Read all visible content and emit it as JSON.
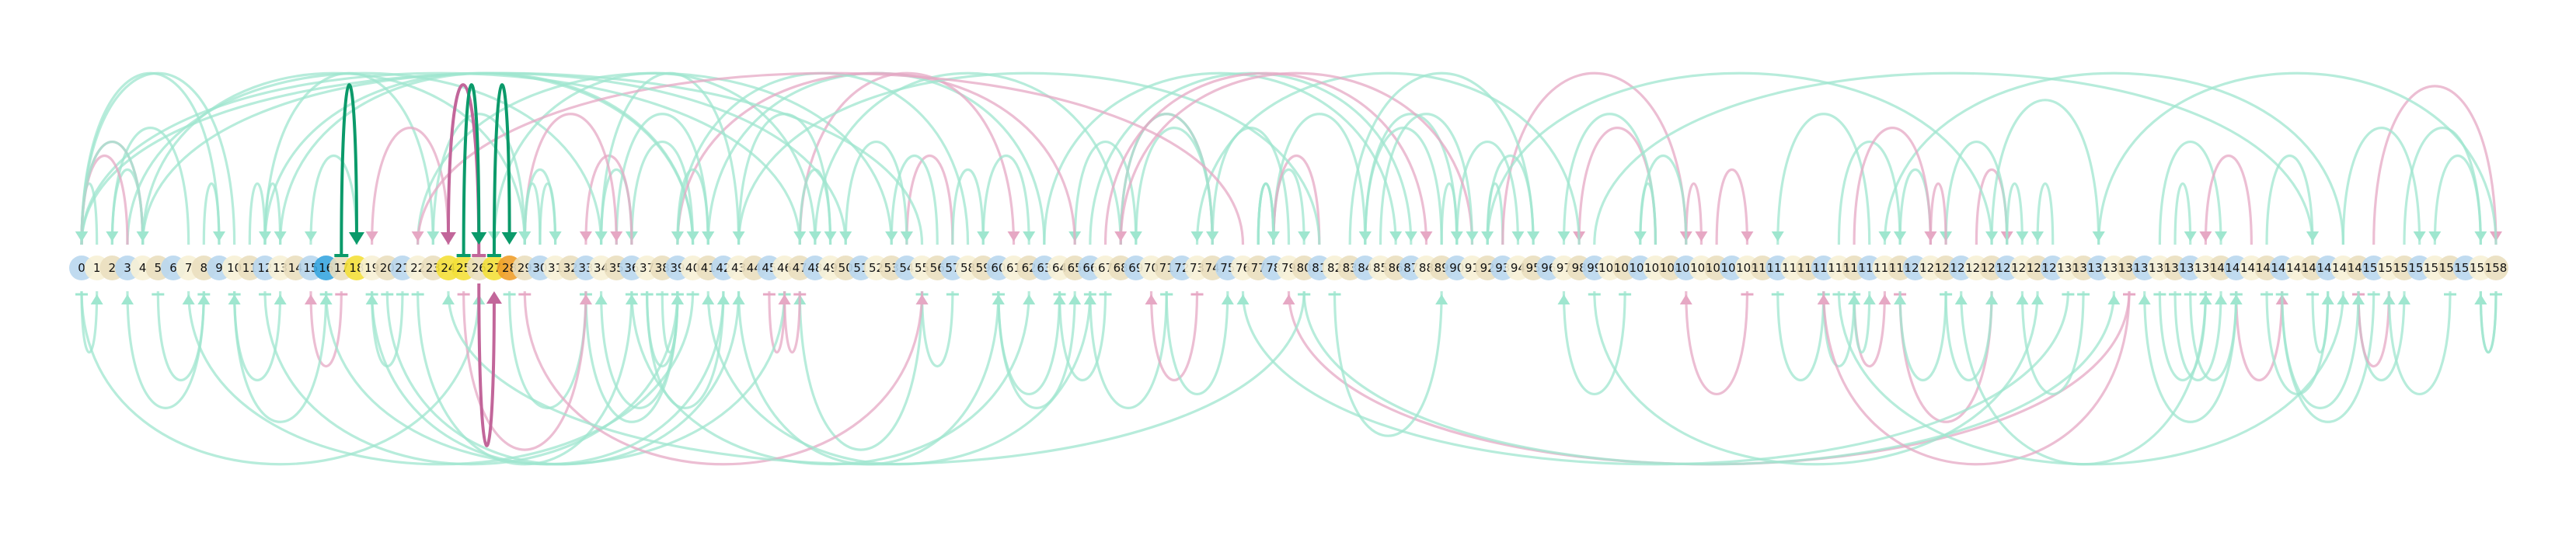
{
  "colors": {
    "background": "#ffffff",
    "arc_mint": "#9fe6cf",
    "arc_pink": "#e6a8c4",
    "arc_green_strong": "#0b9a6a",
    "arc_pink_strong": "#c2669a",
    "node_blue": "#b9d7ee",
    "node_cream": "#f7f1d6",
    "node_tan": "#eadfbf",
    "node_yellow": "#f4e03a",
    "node_strong_blue": "#39a6e0",
    "node_orange": "#ef9f2b"
  },
  "nodes": {
    "count": 159,
    "labels": [
      "0",
      "1",
      "2",
      "3",
      "4",
      "5",
      "6",
      "7",
      "8",
      "9",
      "10",
      "11",
      "12",
      "13",
      "14",
      "15",
      "16",
      "17",
      "18",
      "19",
      "20",
      "21",
      "22",
      "23",
      "24",
      "25",
      "26",
      "27",
      "28",
      "29",
      "30",
      "31",
      "32",
      "33",
      "34",
      "35",
      "36",
      "37",
      "38",
      "39",
      "40",
      "41",
      "42",
      "43",
      "44",
      "45",
      "46",
      "47",
      "48",
      "49",
      "50",
      "51",
      "52",
      "53",
      "54",
      "55",
      "56",
      "57",
      "58",
      "59",
      "60",
      "61",
      "62",
      "63",
      "64",
      "65",
      "66",
      "67",
      "68",
      "69",
      "70",
      "71",
      "72",
      "73",
      "74",
      "75",
      "76",
      "77",
      "78",
      "79",
      "80",
      "81",
      "82",
      "83",
      "84",
      "85",
      "86",
      "87",
      "88",
      "89",
      "90",
      "91",
      "92",
      "93",
      "94",
      "95",
      "96",
      "97",
      "98",
      "99",
      "100",
      "101",
      "102",
      "103",
      "104",
      "105",
      "106",
      "107",
      "108",
      "109",
      "110",
      "111",
      "112",
      "113",
      "114",
      "115",
      "116",
      "117",
      "118",
      "119",
      "120",
      "121",
      "122",
      "123",
      "124",
      "125",
      "126",
      "127",
      "128",
      "129",
      "130",
      "131",
      "132",
      "133",
      "134",
      "135",
      "136",
      "137",
      "138",
      "139",
      "140",
      "141",
      "142",
      "143",
      "144",
      "145",
      "146",
      "147",
      "148",
      "149",
      "150",
      "151",
      "152",
      "153",
      "154",
      "155",
      "156",
      "157",
      "158"
    ],
    "highlight_yellow": [
      18,
      24,
      25,
      27
    ],
    "highlight_blue": [
      16
    ],
    "highlight_orange": [
      28
    ]
  },
  "arcs_highlighted": [
    {
      "from": 17,
      "to": 18,
      "side": "top",
      "color": "green"
    },
    {
      "from": 26,
      "to": 24,
      "side": "top",
      "color": "pink"
    },
    {
      "from": 25,
      "to": 26,
      "side": "top",
      "color": "green"
    },
    {
      "from": 27,
      "to": 28,
      "side": "top",
      "color": "green"
    },
    {
      "from": 26,
      "to": 27,
      "side": "bottom",
      "color": "pink"
    }
  ]
}
